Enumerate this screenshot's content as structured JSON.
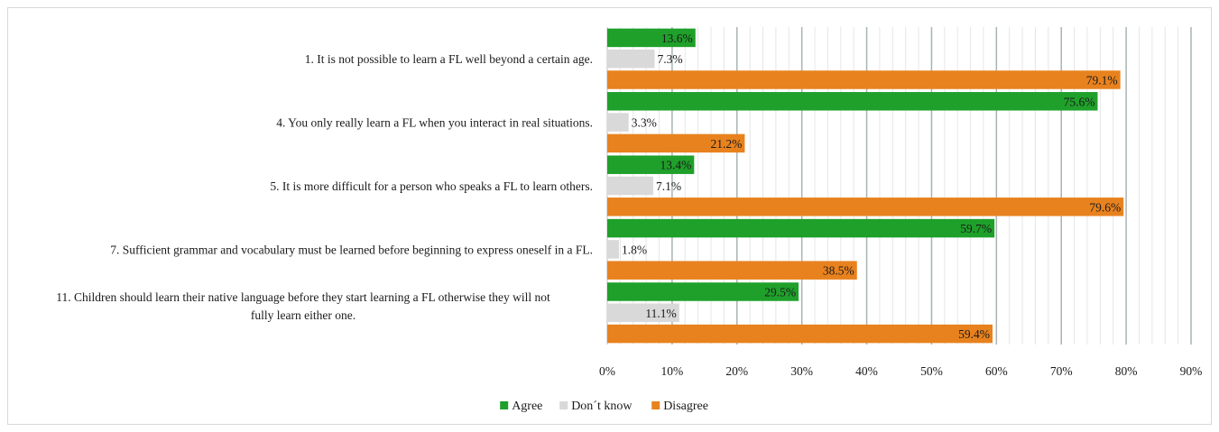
{
  "chart_data": {
    "type": "bar",
    "orientation": "horizontal",
    "categories": [
      [
        "1. It is not possible to learn a FL well beyond a certain age."
      ],
      [
        "4. You only really learn a FL when you interact in real situations."
      ],
      [
        "5. It is more difficult for a person who speaks a FL to learn others."
      ],
      [
        "7. Sufficient grammar and vocabulary must be learned before beginning to express oneself in a FL."
      ],
      [
        "11. Children should learn their native language before they start learning a FL otherwise they will not",
        "fully learn either one."
      ]
    ],
    "series": [
      {
        "name": "Agree",
        "color": "#1fa02a",
        "values": [
          13.6,
          75.6,
          13.4,
          59.7,
          29.5
        ],
        "labels": [
          "13.6%",
          "75.6%",
          "13.4%",
          "59.7%",
          "29.5%"
        ]
      },
      {
        "name": "Don´t know",
        "color": "#d9d9d9",
        "values": [
          7.3,
          3.3,
          7.1,
          1.8,
          11.1
        ],
        "labels": [
          "7.3%",
          "3.3%",
          "7.1%",
          "1.8%",
          "11.1%"
        ]
      },
      {
        "name": "Disagree",
        "color": "#e8821e",
        "values": [
          79.1,
          21.2,
          79.6,
          38.5,
          59.4
        ],
        "labels": [
          "79.1%",
          "21.2%",
          "79.6%",
          "38.5%",
          "59.4%"
        ]
      }
    ],
    "xlim": [
      0,
      90
    ],
    "xticks": [
      0,
      10,
      20,
      30,
      40,
      50,
      60,
      70,
      80,
      90
    ],
    "xtick_labels": [
      "0%",
      "10%",
      "20%",
      "30%",
      "40%",
      "50%",
      "60%",
      "70%",
      "80%",
      "90%"
    ],
    "grid": true,
    "legend": "bottom-center",
    "title": "",
    "xlabel": "",
    "ylabel": ""
  }
}
